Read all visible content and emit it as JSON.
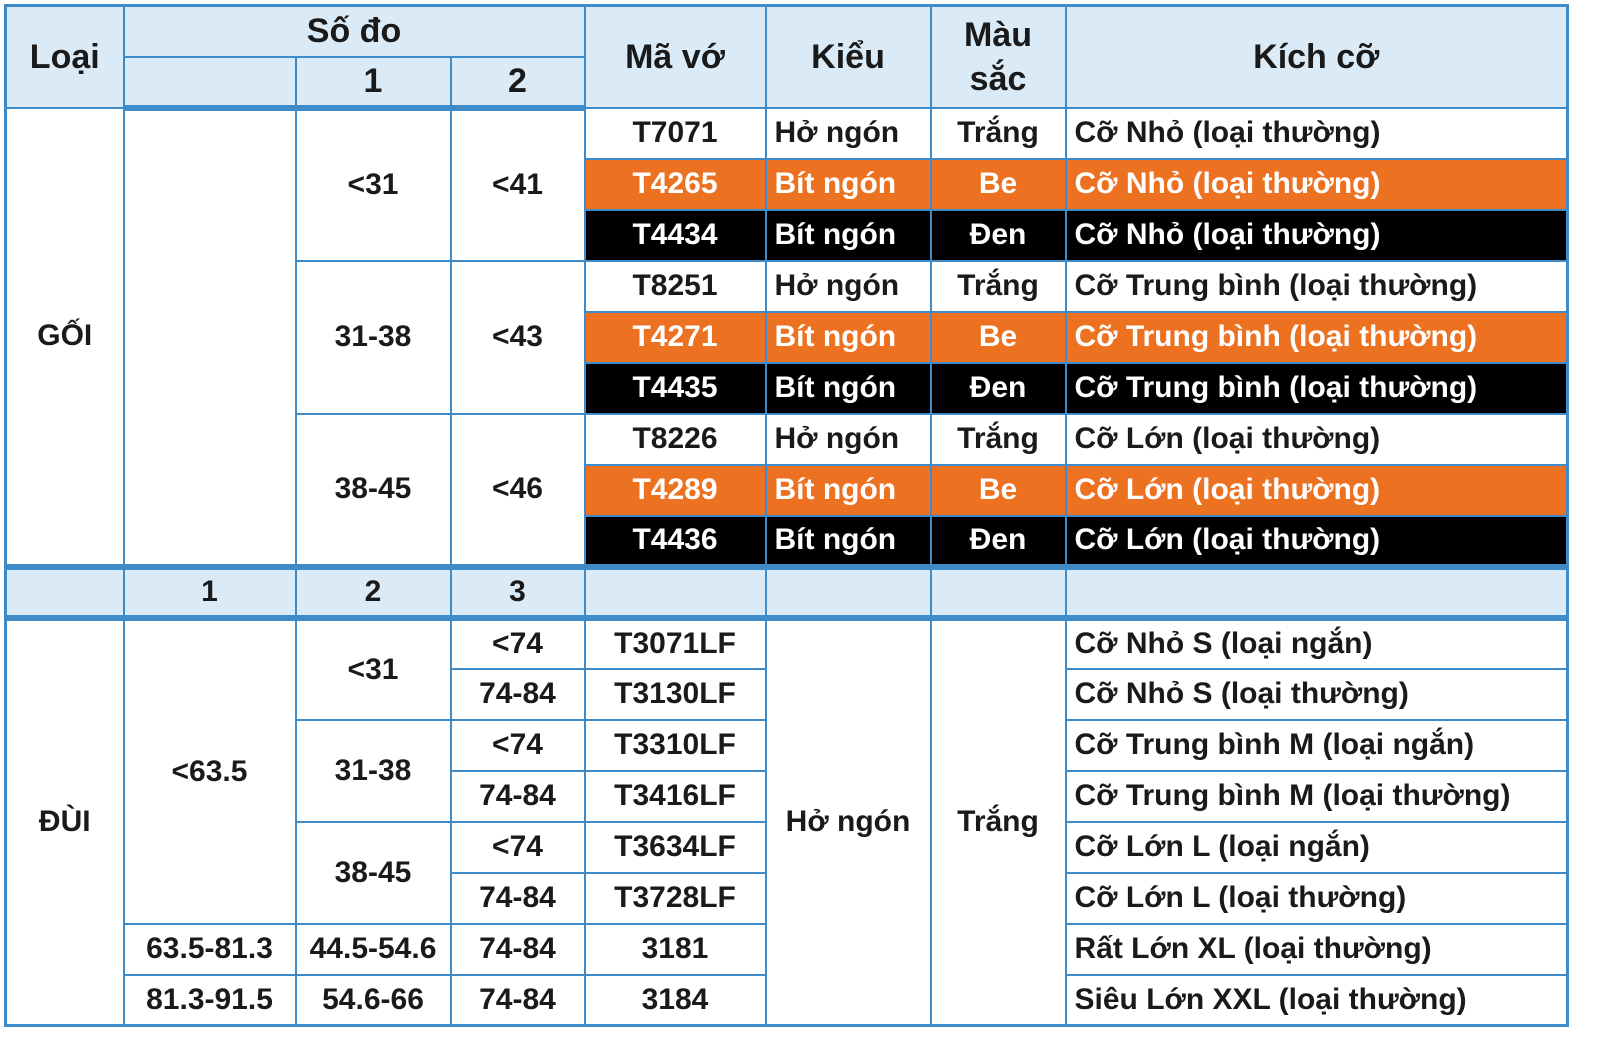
{
  "header": {
    "loai": "Loại",
    "so_do": "Số đo",
    "so_do_1": "1",
    "so_do_2": "2",
    "ma_vo": "Mã vớ",
    "kieu": "Kiểu",
    "mau_sac": "Màu sắc",
    "kich_co": "Kích cỡ"
  },
  "goi": {
    "label": "GỐI",
    "groups": [
      {
        "m1": "<31",
        "m2": "<41",
        "rows": [
          {
            "code": "T7071",
            "style": "Hở ngón",
            "color": "Trắng",
            "size": "Cỡ Nhỏ (loại thường)"
          },
          {
            "code": "T4265",
            "style": "Bít ngón",
            "color": "Be",
            "size": "Cỡ Nhỏ (loại thường)"
          },
          {
            "code": "T4434",
            "style": "Bít ngón",
            "color": "Đen",
            "size": "Cỡ Nhỏ (loại thường)"
          }
        ]
      },
      {
        "m1": "31-38",
        "m2": "<43",
        "rows": [
          {
            "code": "T8251",
            "style": "Hở ngón",
            "color": "Trắng",
            "size": "Cỡ Trung bình (loại thường)"
          },
          {
            "code": "T4271",
            "style": "Bít ngón",
            "color": "Be",
            "size": "Cỡ Trung bình (loại thường)"
          },
          {
            "code": "T4435",
            "style": "Bít ngón",
            "color": "Đen",
            "size": "Cỡ Trung bình (loại thường)"
          }
        ]
      },
      {
        "m1": "38-45",
        "m2": "<46",
        "rows": [
          {
            "code": "T8226",
            "style": "Hở ngón",
            "color": "Trắng",
            "size": "Cỡ Lớn (loại thường)"
          },
          {
            "code": "T4289",
            "style": "Bít ngón",
            "color": "Be",
            "size": "Cỡ Lớn (loại thường)"
          },
          {
            "code": "T4436",
            "style": "Bít ngón",
            "color": "Đen",
            "size": "Cỡ Lớn (loại thường)"
          }
        ]
      }
    ]
  },
  "sub_header": {
    "c1": "1",
    "c2": "2",
    "c3": "3"
  },
  "dui": {
    "label": "ĐÙI",
    "style": "Hở ngón",
    "color": "Trắng",
    "m1_main": "<63.5",
    "m2_groups": [
      "<31",
      "31-38",
      "38-45"
    ],
    "rows": [
      {
        "m3": "<74",
        "code": "T3071LF",
        "size": "Cỡ Nhỏ S (loại ngắn)"
      },
      {
        "m3": "74-84",
        "code": "T3130LF",
        "size": "Cỡ Nhỏ S (loại thường)"
      },
      {
        "m3": "<74",
        "code": "T3310LF",
        "size": "Cỡ Trung bình M (loại ngắn)"
      },
      {
        "m3": "74-84",
        "code": "T3416LF",
        "size": "Cỡ Trung bình M (loại thường)"
      },
      {
        "m3": "<74",
        "code": "T3634LF",
        "size": "Cỡ Lớn L (loại ngắn)"
      },
      {
        "m3": "74-84",
        "code": "T3728LF",
        "size": "Cỡ Lớn L (loại thường)"
      }
    ],
    "extra_rows": [
      {
        "m1": "63.5-81.3",
        "m2": "44.5-54.6",
        "m3": "74-84",
        "code": "3181",
        "size": "Rất Lớn XL (loại thường)"
      },
      {
        "m1": "81.3-91.5",
        "m2": "54.6-66",
        "m3": "74-84",
        "code": "3184",
        "size": "Siêu Lớn XXL (loại thường)"
      }
    ]
  },
  "colors": {
    "border": "#3d8bc8",
    "header_bg": "#daeaf6",
    "beige_row": "#ec7121",
    "black_row": "#000000"
  }
}
